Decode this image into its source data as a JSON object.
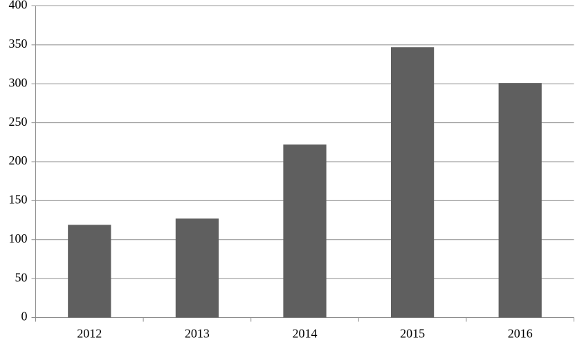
{
  "chart_data": {
    "type": "bar",
    "categories": [
      "2012",
      "2013",
      "2014",
      "2015",
      "2016"
    ],
    "values": [
      119,
      127,
      222,
      347,
      301
    ],
    "color": "#5f5f5f",
    "ylim": [
      0,
      400
    ],
    "yticks": [
      0,
      50,
      100,
      150,
      200,
      250,
      300,
      350,
      400
    ],
    "grid": true
  }
}
